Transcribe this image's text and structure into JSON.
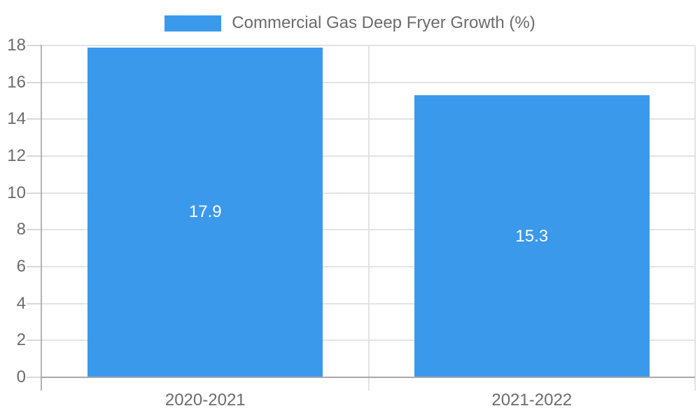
{
  "legend": {
    "label": "Commercial Gas Deep Fryer Growth (%)"
  },
  "colors": {
    "bar": "#3B99EC",
    "bar_value_text": "#FFFFFF",
    "axis_label_text": "#6B6B6B",
    "legend_text": "#6B6B6B",
    "gridline": "#E3E3E3",
    "tick": "#D8D8D8",
    "y_axis_line": "#B3B3B3",
    "x_baseline": "#A9A9A9",
    "background": "#FFFFFF"
  },
  "chart_data": {
    "type": "bar",
    "title": "",
    "categories": [
      "2020-2021",
      "2021-2022"
    ],
    "series": [
      {
        "name": "Commercial Gas Deep Fryer Growth (%)",
        "values": [
          17.9,
          15.3
        ],
        "color": "#3B99EC"
      }
    ],
    "value_labels": [
      "17.9",
      "15.3"
    ],
    "value_label_position": "inside-center",
    "ylim": [
      0,
      18
    ],
    "yticks": [
      0,
      2,
      4,
      6,
      8,
      10,
      12,
      14,
      16,
      18
    ],
    "grid": true,
    "legend_position": "top-center"
  }
}
